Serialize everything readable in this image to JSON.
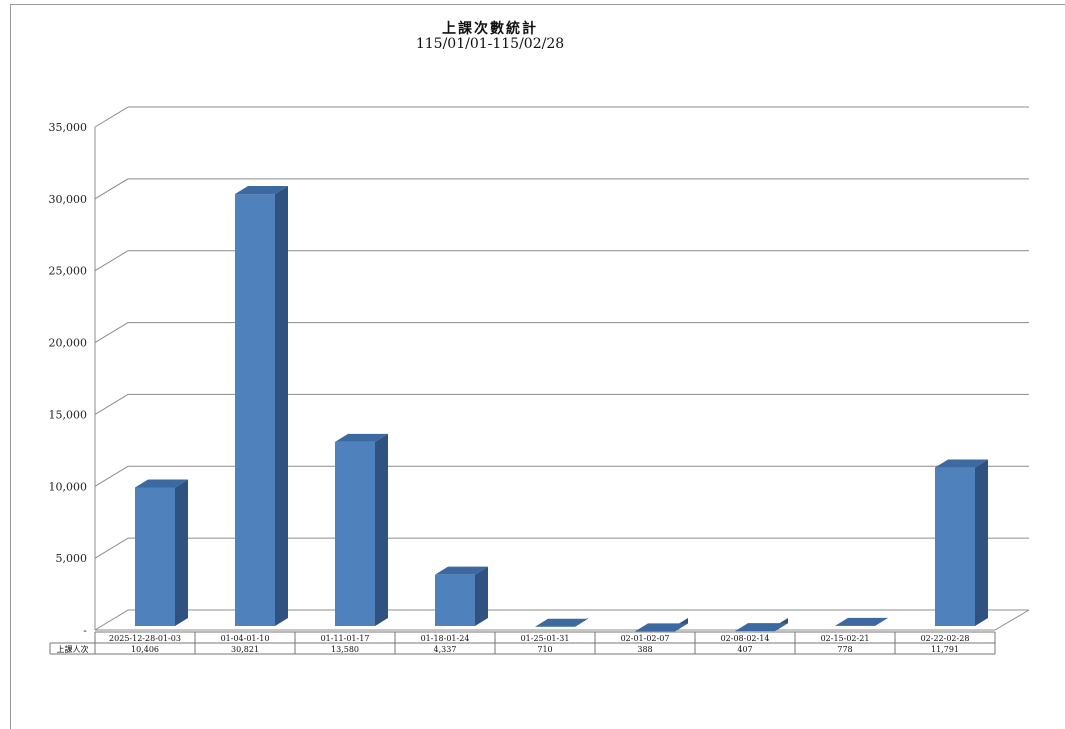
{
  "chart_data": {
    "type": "bar",
    "title": "上課次數統計",
    "subtitle": "115/01/01-115/02/28",
    "categories": [
      "2025-12-28-01-03",
      "01-04-01-10",
      "01-11-01-17",
      "01-18-01-24",
      "01-25-01-31",
      "02-01-02-07",
      "02-08-02-14",
      "02-15-02-21",
      "02-22-02-28"
    ],
    "series": [
      {
        "name": "上課人次",
        "values": [
          10406,
          30821,
          13580,
          4337,
          710,
          388,
          407,
          778,
          11791
        ],
        "labels": [
          "10,406",
          "30,821",
          "13,580",
          "4,337",
          "710",
          "388",
          "407",
          "778",
          "11,791"
        ]
      }
    ],
    "yticks": [
      "-",
      "5,000",
      "10,000",
      "15,000",
      "20,000",
      "25,000",
      "30,000",
      "35,000"
    ],
    "ylim": [
      0,
      35000
    ],
    "grid": true,
    "bar_color": "#4f81bd",
    "bar_side_color": "#2f5280",
    "bar_top_color": "#3c6aa0"
  }
}
